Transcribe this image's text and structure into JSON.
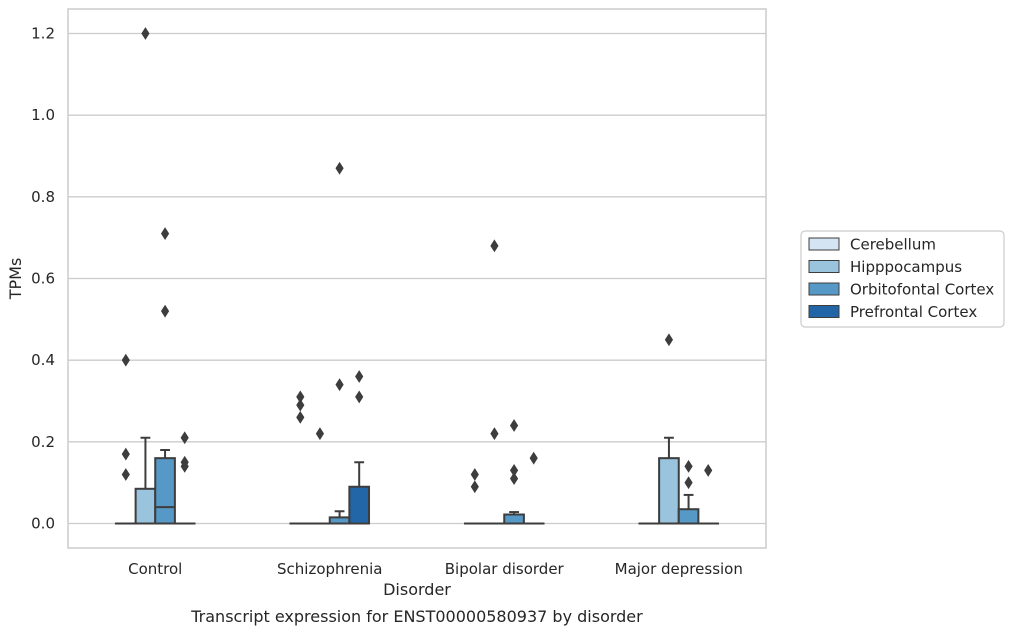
{
  "chart_data": {
    "type": "box",
    "xlabel": "Disorder",
    "ylabel": "TPMs",
    "caption": "Transcript expression for ENST00000580937 by disorder",
    "ylim": [
      -0.06,
      1.26
    ],
    "yticks": [
      "0.0",
      "0.2",
      "0.4",
      "0.6",
      "0.8",
      "1.0",
      "1.2"
    ],
    "ytick_values": [
      0,
      0.2,
      0.4,
      0.6,
      0.8,
      1.0,
      1.2
    ],
    "grid": "horizontal",
    "legend_position": "right",
    "categories": [
      "Control",
      "Schizophrenia",
      "Bipolar disorder",
      "Major depression"
    ],
    "series": [
      {
        "name": "Cerebellum",
        "color": "#d4e4f2",
        "boxes": [
          {
            "q1": 0,
            "median": 0,
            "q3": 0,
            "whisker_low": 0,
            "whisker_high": 0,
            "outliers": [
              0.12,
              0.17,
              0.4
            ]
          },
          {
            "q1": 0,
            "median": 0,
            "q3": 0,
            "whisker_low": 0,
            "whisker_high": 0,
            "outliers": [
              0.26,
              0.29,
              0.31
            ]
          },
          {
            "q1": 0,
            "median": 0,
            "q3": 0,
            "whisker_low": 0,
            "whisker_high": 0,
            "outliers": [
              0.09,
              0.12
            ]
          },
          {
            "q1": 0,
            "median": 0,
            "q3": 0,
            "whisker_low": 0,
            "whisker_high": 0,
            "outliers": []
          }
        ]
      },
      {
        "name": "Hipppocampus",
        "color": "#9ac3de",
        "boxes": [
          {
            "q1": 0,
            "median": 0,
            "q3": 0.085,
            "whisker_low": 0,
            "whisker_high": 0.21,
            "outliers": [
              1.2
            ]
          },
          {
            "q1": 0,
            "median": 0,
            "q3": 0,
            "whisker_low": 0,
            "whisker_high": 0,
            "outliers": [
              0.22
            ]
          },
          {
            "q1": 0,
            "median": 0,
            "q3": 0,
            "whisker_low": 0,
            "whisker_high": 0,
            "outliers": [
              0.22,
              0.68
            ]
          },
          {
            "q1": 0,
            "median": 0,
            "q3": 0.16,
            "whisker_low": 0,
            "whisker_high": 0.21,
            "outliers": [
              0.45
            ]
          }
        ]
      },
      {
        "name": "Orbitofontal Cortex",
        "color": "#5799c6",
        "boxes": [
          {
            "q1": 0,
            "median": 0.04,
            "q3": 0.16,
            "whisker_low": 0,
            "whisker_high": 0.18,
            "outliers": [
              0.52,
              0.71
            ]
          },
          {
            "q1": 0,
            "median": 0,
            "q3": 0.015,
            "whisker_low": 0,
            "whisker_high": 0.03,
            "outliers": [
              0.34,
              0.87
            ]
          },
          {
            "q1": 0,
            "median": 0,
            "q3": 0.022,
            "whisker_low": 0,
            "whisker_high": 0.028,
            "outliers": [
              0.11,
              0.13,
              0.24
            ]
          },
          {
            "q1": 0,
            "median": 0,
            "q3": 0.035,
            "whisker_low": 0,
            "whisker_high": 0.07,
            "outliers": [
              0.1,
              0.14
            ]
          }
        ]
      },
      {
        "name": "Prefrontal Cortex",
        "color": "#2366a8",
        "boxes": [
          {
            "q1": 0,
            "median": 0,
            "q3": 0,
            "whisker_low": 0,
            "whisker_high": 0,
            "outliers": [
              0.14,
              0.15,
              0.21
            ]
          },
          {
            "q1": 0,
            "median": 0,
            "q3": 0.09,
            "whisker_low": 0,
            "whisker_high": 0.15,
            "outliers": [
              0.31,
              0.36
            ]
          },
          {
            "q1": 0,
            "median": 0,
            "q3": 0,
            "whisker_low": 0,
            "whisker_high": 0,
            "outliers": [
              0.16
            ]
          },
          {
            "q1": 0,
            "median": 0,
            "q3": 0,
            "whisker_low": 0,
            "whisker_high": 0,
            "outliers": [
              0.13
            ]
          }
        ]
      }
    ]
  }
}
